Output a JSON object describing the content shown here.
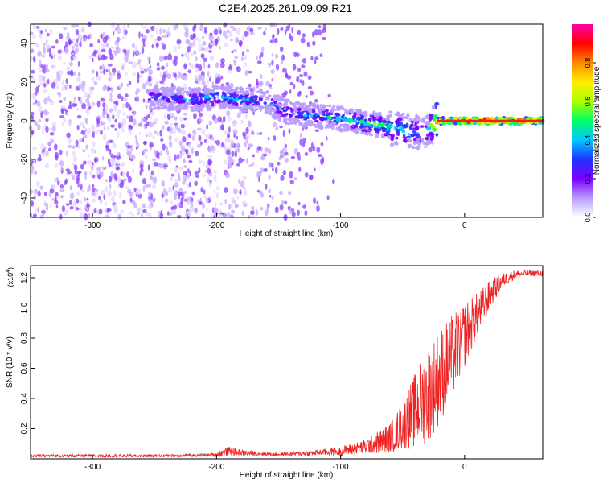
{
  "title": "C2E4.2025.261.09.09.R21",
  "chart_data": [
    {
      "type": "heatmap",
      "name": "spectrogram",
      "xlabel": "Height of straight line (km)",
      "ylabel": "Frequency (Hz)",
      "xlim": [
        -350,
        63
      ],
      "ylim": [
        -50,
        50
      ],
      "xticks": [
        -300,
        -200,
        -100,
        0
      ],
      "yticks": [
        -40,
        -20,
        0,
        20,
        40
      ],
      "colorbar": {
        "label": "Normalized spectral amplitude",
        "range": [
          0,
          1
        ],
        "ticks": [
          "0.0",
          "0.2",
          "0.4",
          "0.6",
          "0.8"
        ],
        "colors": [
          "#ffffff",
          "#b99cff",
          "#7a00ff",
          "#2233ff",
          "#00c8ff",
          "#00ff66",
          "#aaff00",
          "#ffee00",
          "#ff8800",
          "#ff0000",
          "#ff00aa"
        ]
      },
      "ridge": {
        "x": [
          -255,
          -220,
          -200,
          -180,
          -160,
          -145,
          -130,
          -110,
          -90,
          -70,
          -55,
          -40,
          -30,
          -22,
          -15,
          0,
          20,
          40,
          63
        ],
        "center_hz": [
          12,
          11,
          12,
          11,
          10,
          5,
          3,
          2,
          0,
          -2,
          -4,
          -6,
          -5,
          0,
          0,
          0,
          0,
          0,
          0
        ],
        "amplitude": [
          0.3,
          0.35,
          0.4,
          0.42,
          0.35,
          0.3,
          0.35,
          0.4,
          0.45,
          0.5,
          0.45,
          0.4,
          0.35,
          0.8,
          0.95,
          0.95,
          0.95,
          0.95,
          0.9
        ]
      }
    },
    {
      "type": "line",
      "name": "snr",
      "xlabel": "Height of straight line (km)",
      "ylabel": "SNR (10 * v/v)",
      "scale_label": "(x10",
      "scale_exp": "4",
      "xlim": [
        -350,
        63
      ],
      "ylim": [
        0,
        1.28
      ],
      "xticks": [
        -300,
        -200,
        -100,
        0
      ],
      "yticks": [
        0.2,
        0.4,
        0.6,
        0.8,
        1.0,
        1.2
      ],
      "color": "#ee2222",
      "envelope": {
        "x": [
          -350,
          -250,
          -205,
          -200,
          -190,
          -180,
          -150,
          -120,
          -100,
          -80,
          -60,
          -50,
          -40,
          -30,
          -20,
          -10,
          0,
          10,
          20,
          30,
          40,
          50,
          63
        ],
        "mean": [
          0.02,
          0.02,
          0.025,
          0.03,
          0.05,
          0.04,
          0.03,
          0.04,
          0.05,
          0.08,
          0.14,
          0.22,
          0.32,
          0.42,
          0.55,
          0.68,
          0.82,
          0.95,
          1.08,
          1.18,
          1.22,
          1.23,
          1.23
        ],
        "spread": [
          0.01,
          0.01,
          0.01,
          0.02,
          0.03,
          0.02,
          0.01,
          0.02,
          0.03,
          0.05,
          0.1,
          0.16,
          0.25,
          0.32,
          0.32,
          0.28,
          0.22,
          0.15,
          0.1,
          0.05,
          0.03,
          0.02,
          0.02
        ]
      }
    }
  ]
}
